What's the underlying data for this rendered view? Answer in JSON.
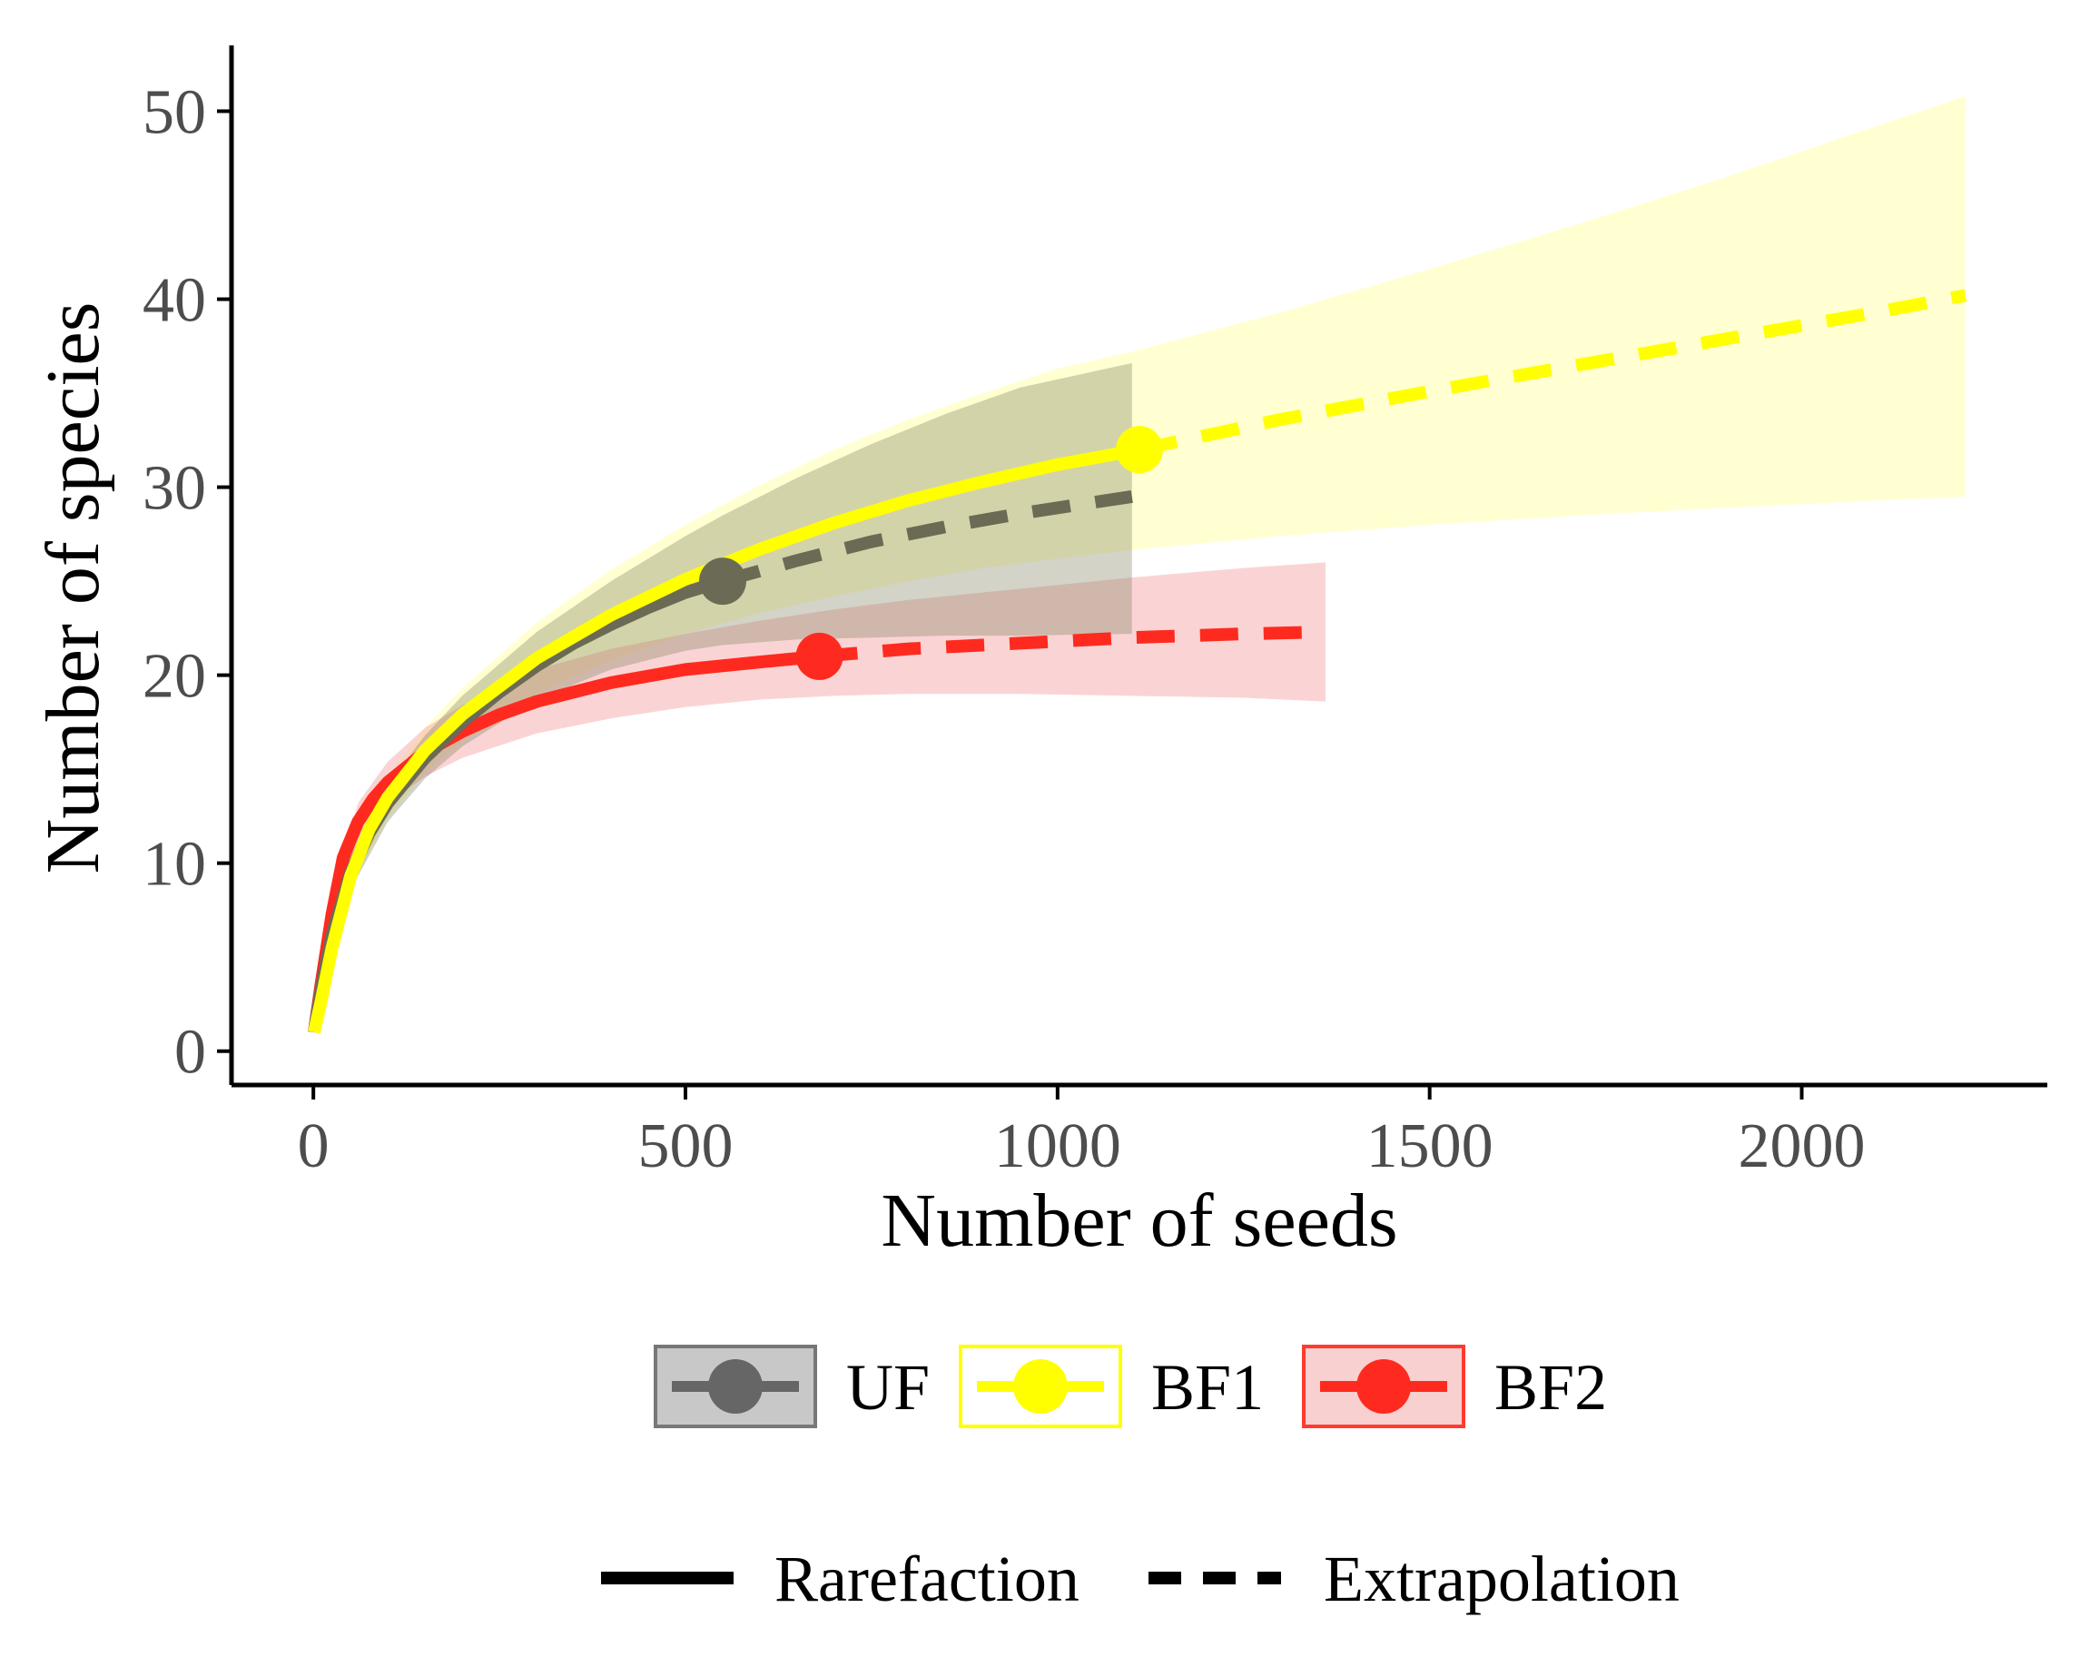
{
  "chart_data": {
    "type": "line",
    "title": "",
    "xlabel": "Number of seeds",
    "ylabel": "Number of species",
    "xlim": [
      -110,
      2330
    ],
    "ylim": [
      -1.8,
      53.5
    ],
    "x_ticks": [
      0,
      500,
      1000,
      1500,
      2000
    ],
    "x_tick_labels": [
      "0",
      "500",
      "1000",
      "1500",
      "2000"
    ],
    "y_ticks": [
      0,
      10,
      20,
      30,
      40,
      50
    ],
    "y_tick_labels": [
      "0",
      "10",
      "20",
      "30",
      "40",
      "50"
    ],
    "grid": false,
    "legend_position": "bottom",
    "series": [
      {
        "name": "UF",
        "color": "#666666",
        "ribbon_color": "#808060",
        "observed_point": {
          "x": 550,
          "y": 25
        },
        "rarefaction": {
          "x": [
            1,
            10,
            25,
            50,
            75,
            100,
            150,
            200,
            250,
            300,
            350,
            400,
            450,
            500,
            550
          ],
          "y": [
            1,
            3.2,
            6.2,
            9.5,
            11.6,
            13.2,
            15.6,
            17.5,
            19.1,
            20.5,
            21.7,
            22.7,
            23.6,
            24.4,
            25.0
          ]
        },
        "extrapolation": {
          "x": [
            550,
            650,
            750,
            850,
            950,
            1050,
            1100
          ],
          "y": [
            25.0,
            26.1,
            27.1,
            27.9,
            28.6,
            29.2,
            29.5
          ]
        },
        "ci_lower": {
          "x": [
            1,
            25,
            50,
            100,
            150,
            200,
            300,
            400,
            500,
            550,
            650,
            750,
            850,
            950,
            1100
          ],
          "y": [
            1,
            5.6,
            8.6,
            12.2,
            14.5,
            16.2,
            18.7,
            20.3,
            21.3,
            21.6,
            21.9,
            22.0,
            22.1,
            22.1,
            22.2
          ]
        },
        "ci_upper": {
          "x": [
            1,
            25,
            50,
            100,
            150,
            200,
            300,
            400,
            500,
            550,
            650,
            750,
            850,
            950,
            1100
          ],
          "y": [
            1,
            6.8,
            10.4,
            14.2,
            16.8,
            18.9,
            22.3,
            25.0,
            27.4,
            28.5,
            30.5,
            32.3,
            33.9,
            35.3,
            36.6
          ]
        }
      },
      {
        "name": "BF1",
        "color": "#ffff00",
        "ribbon_color": "#ffff99",
        "observed_point": {
          "x": 1110,
          "y": 32
        },
        "rarefaction": {
          "x": [
            1,
            10,
            25,
            50,
            75,
            100,
            150,
            200,
            300,
            400,
            500,
            600,
            700,
            800,
            900,
            1000,
            1110
          ],
          "y": [
            1,
            2.6,
            5.5,
            9.3,
            11.8,
            13.5,
            16.0,
            17.9,
            20.9,
            23.2,
            25.1,
            26.7,
            28.1,
            29.3,
            30.3,
            31.2,
            32.0
          ]
        },
        "extrapolation": {
          "x": [
            1110,
            1300,
            1500,
            1700,
            1900,
            2100,
            2220
          ],
          "y": [
            32.0,
            33.6,
            35.1,
            36.5,
            37.9,
            39.3,
            40.2
          ]
        },
        "ci_lower": {
          "x": [
            1,
            25,
            50,
            100,
            150,
            200,
            300,
            400,
            500,
            600,
            700,
            800,
            900,
            1000,
            1110,
            1300,
            1500,
            1700,
            1900,
            2100,
            2220
          ],
          "y": [
            1,
            5.0,
            8.6,
            12.4,
            14.8,
            16.5,
            19.0,
            20.8,
            22.2,
            23.3,
            24.2,
            25.0,
            25.7,
            26.2,
            26.7,
            27.4,
            28.0,
            28.5,
            28.9,
            29.3,
            29.5
          ]
        },
        "ci_upper": {
          "x": [
            1,
            25,
            50,
            100,
            150,
            200,
            300,
            400,
            500,
            600,
            700,
            800,
            900,
            1000,
            1110,
            1300,
            1500,
            1700,
            1900,
            2100,
            2220
          ],
          "y": [
            1,
            6.0,
            10.0,
            14.6,
            17.2,
            19.3,
            22.8,
            25.6,
            28.0,
            30.1,
            32.0,
            33.6,
            35.0,
            36.3,
            37.3,
            39.3,
            41.6,
            44.0,
            46.5,
            49.2,
            50.8
          ]
        }
      },
      {
        "name": "BF2",
        "color": "#ff2a1f",
        "ribbon_color": "#f4a0a0",
        "observed_point": {
          "x": 680,
          "y": 21
        },
        "rarefaction": {
          "x": [
            1,
            10,
            25,
            40,
            60,
            80,
            100,
            150,
            200,
            250,
            300,
            400,
            500,
            600,
            680
          ],
          "y": [
            1,
            3.5,
            7.3,
            10.3,
            12.2,
            13.4,
            14.3,
            15.9,
            17.0,
            17.9,
            18.6,
            19.6,
            20.3,
            20.7,
            21.0
          ]
        },
        "extrapolation": {
          "x": [
            680,
            800,
            950,
            1100,
            1250,
            1360
          ],
          "y": [
            21.0,
            21.4,
            21.7,
            22.0,
            22.2,
            22.3
          ]
        },
        "ci_lower": {
          "x": [
            1,
            25,
            60,
            100,
            150,
            200,
            300,
            400,
            500,
            600,
            700,
            800,
            950,
            1100,
            1250,
            1360
          ],
          "y": [
            1,
            6.8,
            11.2,
            13.2,
            14.6,
            15.6,
            16.9,
            17.7,
            18.3,
            18.7,
            18.9,
            19.0,
            19.0,
            18.9,
            18.8,
            18.6
          ]
        },
        "ci_upper": {
          "x": [
            1,
            25,
            60,
            100,
            150,
            200,
            300,
            400,
            500,
            600,
            700,
            800,
            950,
            1100,
            1250,
            1360
          ],
          "y": [
            1,
            7.9,
            13.2,
            15.4,
            17.2,
            18.4,
            20.3,
            21.4,
            22.2,
            22.9,
            23.5,
            24.0,
            24.6,
            25.2,
            25.7,
            26.0
          ]
        }
      }
    ],
    "linetype_legend": [
      {
        "label": "Rarefaction",
        "style": "solid"
      },
      {
        "label": "Extrapolation",
        "style": "dashed"
      }
    ]
  },
  "colors": {
    "axis": "#000000",
    "tick_text": "#4d4d4d",
    "background": "#ffffff"
  }
}
